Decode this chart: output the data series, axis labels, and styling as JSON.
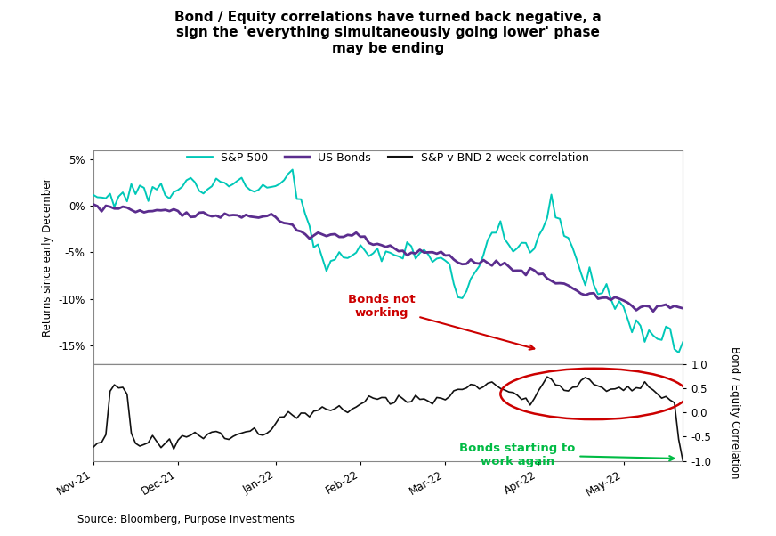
{
  "title": "Bond / Equity correlations have turned back negative, a\nsign the 'everything simultaneously going lower' phase\nmay be ending",
  "source": "Source: Bloomberg, Purpose Investments",
  "left_ylabel": "Returns since early December",
  "right_ylabel": "Bond / Equity Correlation",
  "legend": [
    "S&P 500",
    "US Bonds",
    "S&P v BND 2-week correlation"
  ],
  "sp500_color": "#00C8B8",
  "bonds_color": "#5B2D8E",
  "corr_color": "#111111",
  "background_color": "#FFFFFF",
  "x_ticks": [
    "Nov-21",
    "Dec-21",
    "Jan-22",
    "Feb-22",
    "Mar-22",
    "Apr-22",
    "May-22"
  ],
  "left_yticks": [
    -15,
    -10,
    -5,
    0,
    5
  ],
  "left_yticklabels": [
    "-15%",
    "-10%",
    "-5%",
    "0%",
    "5%"
  ],
  "right_yticks": [
    1.0,
    0.5,
    0.0,
    -0.5,
    -1.0
  ],
  "right_yticklabels": [
    "1.0",
    "0.5",
    "0.0",
    "-0.5",
    "-1.0"
  ],
  "annotation_bonds_not_working": "Bonds not\nworking",
  "annotation_bonds_working": "Bonds starting to\nwork again",
  "annotation_bonds_not_color": "#CC0000",
  "annotation_bonds_working_color": "#00BB44"
}
